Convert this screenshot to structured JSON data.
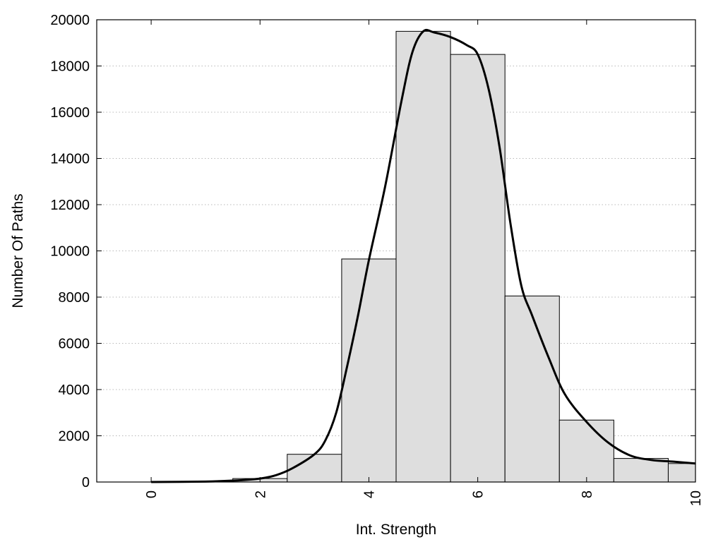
{
  "chart_data": {
    "type": "bar",
    "title": "",
    "xlabel": "Int. Strength",
    "ylabel": "Number Of Paths",
    "xlim": [
      -1,
      10
    ],
    "ylim": [
      0,
      20000
    ],
    "x_ticks": [
      0,
      2,
      4,
      6,
      8,
      10
    ],
    "y_ticks": [
      0,
      2000,
      4000,
      6000,
      8000,
      10000,
      12000,
      14000,
      16000,
      18000,
      20000
    ],
    "grid": "horizontal dotted",
    "bins": [
      {
        "center": 0,
        "value": 0
      },
      {
        "center": 1,
        "value": 20
      },
      {
        "center": 2,
        "value": 150
      },
      {
        "center": 3,
        "value": 1200
      },
      {
        "center": 4,
        "value": 9650
      },
      {
        "center": 5,
        "value": 19500
      },
      {
        "center": 6,
        "value": 18500
      },
      {
        "center": 7,
        "value": 8050
      },
      {
        "center": 8,
        "value": 2680
      },
      {
        "center": 9,
        "value": 1020
      },
      {
        "center": 10,
        "value": 800
      }
    ],
    "bar_width": 1,
    "bar_fill": "#dedede",
    "fit_curve": {
      "x": [
        0,
        1,
        1.5,
        2,
        2.3,
        2.6,
        3.0,
        3.2,
        3.4,
        3.6,
        3.8,
        4.0,
        4.3,
        4.6,
        4.8,
        5.0,
        5.2,
        5.5,
        5.8,
        6.0,
        6.2,
        6.4,
        6.6,
        6.8,
        7.0,
        7.3,
        7.6,
        8.0,
        8.4,
        8.8,
        9.2,
        9.6,
        10.0
      ],
      "y": [
        0,
        20,
        60,
        150,
        300,
        600,
        1200,
        1800,
        3000,
        5000,
        7200,
        9600,
        12800,
        16500,
        18600,
        19500,
        19450,
        19250,
        18900,
        18500,
        17000,
        14500,
        11200,
        8500,
        7200,
        5400,
        3800,
        2600,
        1700,
        1150,
        950,
        880,
        800
      ]
    },
    "curve_color": "#000000"
  }
}
